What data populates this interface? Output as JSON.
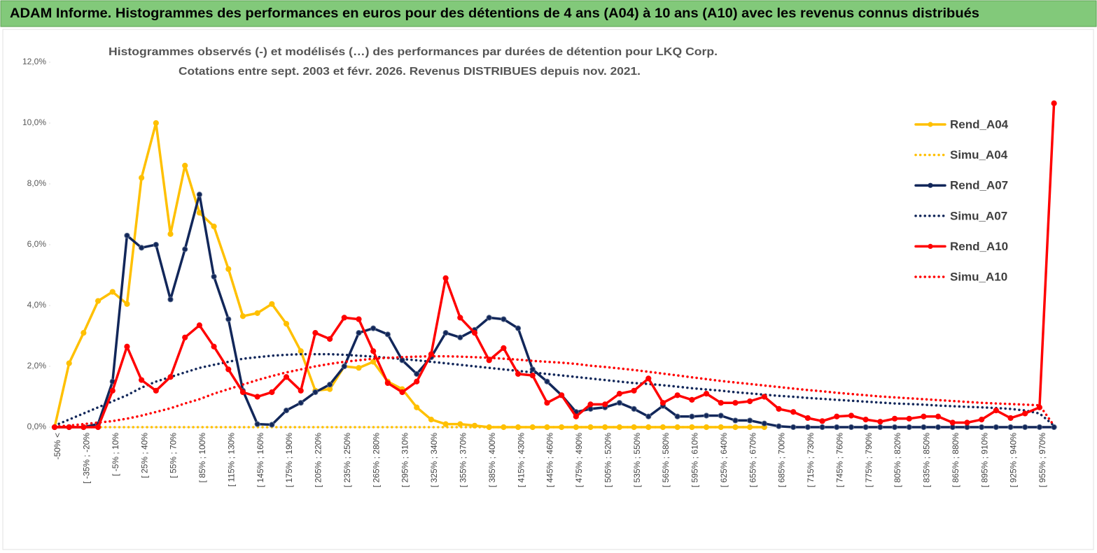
{
  "header": {
    "title": "ADAM Informe. Histogrammes des performances en euros pour des détentions de 4 ans (A04) à 10 ans (A10) avec les revenus connus distribués"
  },
  "chart_data": {
    "type": "line",
    "title": "Histogrammes observés (-) et modélisés (…) des performances par durées de détention pour LKQ Corp.",
    "subtitle": "Cotations entre sept. 2003 et févr. 2026. Revenus DISTRIBUES depuis nov. 2021.",
    "categories": [
      "-50% <",
      null,
      "[ -35% ; -20%",
      null,
      "[ -5% ; 10%",
      null,
      "[ 25% ; 40%",
      null,
      "[ 55% ; 70%",
      null,
      "[ 85% ; 100%",
      null,
      "[ 115% ; 130%",
      null,
      "[ 145% ; 160%",
      null,
      "[ 175% ; 190%",
      null,
      "[ 205% ; 220%",
      null,
      "[ 235% ; 250%",
      null,
      "[ 265% ; 280%",
      null,
      "[ 295% ; 310%",
      null,
      "[ 325% ; 340%",
      null,
      "[ 355% ; 370%",
      null,
      "[ 385% ; 400%",
      null,
      "[ 415% ; 430%",
      null,
      "[ 445% ; 460%",
      null,
      "[ 475% ; 490%",
      null,
      "[ 505% ; 520%",
      null,
      "[ 535% ; 550%",
      null,
      "[ 565% ; 580%",
      null,
      "[ 595% ; 610%",
      null,
      "[ 625% ; 640%",
      null,
      "[ 655% ; 670%",
      null,
      "[ 685% ; 700%",
      null,
      "[ 715% ; 730%",
      null,
      "[ 745% ; 760%",
      null,
      "[ 775% ; 790%",
      null,
      "[ 805% ; 820%",
      null,
      "[ 835% ; 850%",
      null,
      "[ 865% ; 880%",
      null,
      "[ 895% ; 910%",
      null,
      "[ 925% ; 940%",
      null,
      "[ 955% ; 970%",
      null
    ],
    "ylim": [
      0,
      12
    ],
    "yticks": [
      {
        "value": 0,
        "label": "0,0%"
      },
      {
        "value": 2,
        "label": "2,0%"
      },
      {
        "value": 4,
        "label": "4,0%"
      },
      {
        "value": 6,
        "label": "6,0%"
      },
      {
        "value": 8,
        "label": "8,0%"
      },
      {
        "value": 10,
        "label": "10,0%"
      },
      {
        "value": 12,
        "label": "12,0%"
      }
    ],
    "legend": "right",
    "series": [
      {
        "name": "Rend_A04",
        "color": "#ffc000",
        "style": "solid",
        "values": [
          0,
          2.1,
          3.1,
          4.15,
          4.45,
          4.05,
          8.2,
          10.0,
          6.35,
          8.6,
          7.05,
          6.6,
          5.2,
          3.65,
          3.75,
          4.05,
          3.4,
          2.5,
          1.2,
          1.25,
          2.0,
          1.95,
          2.15,
          1.5,
          1.25,
          0.65,
          0.25,
          0.1,
          0.1,
          0.05,
          0,
          0,
          0,
          0,
          0,
          0,
          0,
          0,
          0,
          0,
          0,
          0,
          0,
          0,
          0,
          0,
          0,
          0,
          0,
          0,
          null,
          null,
          null,
          null,
          null,
          null,
          null,
          null,
          null,
          null,
          null,
          null,
          null,
          null,
          null,
          null,
          null,
          null,
          null,
          null
        ]
      },
      {
        "name": "Simu_A04",
        "color": "#ffc000",
        "style": "dotted",
        "values": [
          0,
          0,
          0,
          0,
          0,
          0,
          0,
          0,
          0,
          0,
          0,
          0,
          0,
          0,
          0,
          0,
          0,
          0,
          0,
          0,
          0,
          0,
          0,
          0,
          0,
          0,
          0,
          0,
          0,
          0,
          0,
          0,
          0,
          0,
          0,
          0,
          0,
          0,
          0,
          0,
          0,
          0,
          0,
          0,
          0,
          0,
          0,
          0,
          0,
          0,
          null,
          null,
          null,
          null,
          null,
          null,
          null,
          null,
          null,
          null,
          null,
          null,
          null,
          null,
          null,
          null,
          null,
          null,
          null,
          null
        ]
      },
      {
        "name": "Rend_A07",
        "color": "#12275a",
        "style": "solid",
        "values": [
          0,
          0,
          0,
          0.1,
          1.5,
          6.3,
          5.9,
          6.0,
          4.2,
          5.85,
          7.65,
          4.95,
          3.55,
          1.2,
          0.1,
          0.08,
          0.55,
          0.8,
          1.15,
          1.4,
          2.0,
          3.1,
          3.25,
          3.05,
          2.2,
          1.75,
          2.3,
          3.1,
          2.95,
          3.2,
          3.6,
          3.55,
          3.25,
          1.9,
          1.5,
          1.05,
          0.5,
          0.6,
          0.65,
          0.8,
          0.6,
          0.35,
          0.7,
          0.35,
          0.35,
          0.38,
          0.38,
          0.22,
          0.22,
          0.12,
          0.03,
          0,
          0,
          0,
          0,
          0,
          0,
          0,
          0,
          0,
          0,
          0,
          0,
          0,
          0,
          0,
          0,
          0,
          0,
          0
        ]
      },
      {
        "name": "Simu_A07",
        "color": "#12275a",
        "style": "dotted",
        "values": [
          0.05,
          0.25,
          0.45,
          0.65,
          0.85,
          1.05,
          1.3,
          1.5,
          1.65,
          1.8,
          1.95,
          2.05,
          2.15,
          2.25,
          2.3,
          2.35,
          2.38,
          2.4,
          2.4,
          2.4,
          2.38,
          2.35,
          2.32,
          2.28,
          2.24,
          2.2,
          2.15,
          2.1,
          2.05,
          2.0,
          1.95,
          1.9,
          1.85,
          1.8,
          1.75,
          1.7,
          1.65,
          1.6,
          1.55,
          1.5,
          1.45,
          1.42,
          1.38,
          1.33,
          1.28,
          1.24,
          1.2,
          1.15,
          1.11,
          1.07,
          1.03,
          1.0,
          0.96,
          0.93,
          0.9,
          0.87,
          0.84,
          0.81,
          0.78,
          0.76,
          0.74,
          0.71,
          0.69,
          0.67,
          0.65,
          0.63,
          0.6,
          0.55,
          0.45,
          0.05
        ]
      },
      {
        "name": "Rend_A10",
        "color": "#ff0000",
        "style": "solid",
        "values": [
          0,
          0,
          0,
          0,
          1.2,
          2.65,
          1.55,
          1.2,
          1.65,
          2.95,
          3.35,
          2.65,
          1.9,
          1.15,
          1.0,
          1.15,
          1.65,
          1.2,
          3.1,
          2.9,
          3.6,
          3.55,
          2.5,
          1.45,
          1.15,
          1.5,
          2.4,
          4.9,
          3.6,
          3.1,
          2.2,
          2.6,
          1.75,
          1.7,
          0.8,
          1.05,
          0.35,
          0.75,
          0.75,
          1.1,
          1.2,
          1.6,
          0.8,
          1.05,
          0.9,
          1.1,
          0.8,
          0.8,
          0.85,
          1.0,
          0.6,
          0.5,
          0.3,
          0.2,
          0.35,
          0.38,
          0.25,
          0.18,
          0.28,
          0.28,
          0.35,
          0.35,
          0.15,
          0.15,
          0.25,
          0.55,
          0.3,
          0.45,
          0.65,
          10.65
        ]
      },
      {
        "name": "Simu_A10",
        "color": "#ff0000",
        "style": "dotted",
        "values": [
          0.02,
          0.05,
          0.1,
          0.15,
          0.2,
          0.28,
          0.38,
          0.5,
          0.62,
          0.78,
          0.92,
          1.1,
          1.25,
          1.4,
          1.55,
          1.68,
          1.8,
          1.9,
          2.0,
          2.08,
          2.15,
          2.2,
          2.25,
          2.28,
          2.3,
          2.32,
          2.33,
          2.33,
          2.32,
          2.3,
          2.28,
          2.25,
          2.22,
          2.18,
          2.15,
          2.12,
          2.08,
          2.02,
          1.98,
          1.93,
          1.88,
          1.82,
          1.76,
          1.7,
          1.64,
          1.58,
          1.52,
          1.47,
          1.42,
          1.37,
          1.32,
          1.27,
          1.22,
          1.18,
          1.13,
          1.09,
          1.05,
          1.01,
          0.98,
          0.95,
          0.92,
          0.89,
          0.86,
          0.83,
          0.8,
          0.78,
          0.76,
          0.74,
          0.72,
          0.05
        ]
      }
    ]
  }
}
